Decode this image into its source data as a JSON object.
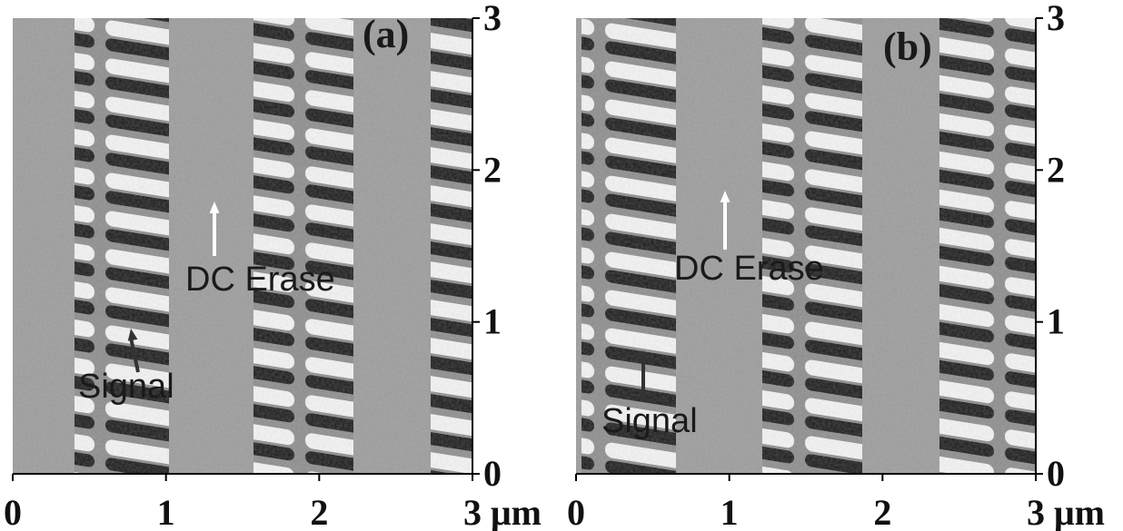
{
  "panels": [
    {
      "label": "(a)",
      "erase_label": "DC Erase",
      "signal_label": "Signal"
    },
    {
      "label": "(b)",
      "erase_label": "DC Erase",
      "signal_label": "Signal"
    }
  ],
  "axes": {
    "xticks": [
      0,
      1,
      2,
      3
    ],
    "yticks": [
      0,
      1,
      2,
      3
    ],
    "unit": "μm"
  }
}
